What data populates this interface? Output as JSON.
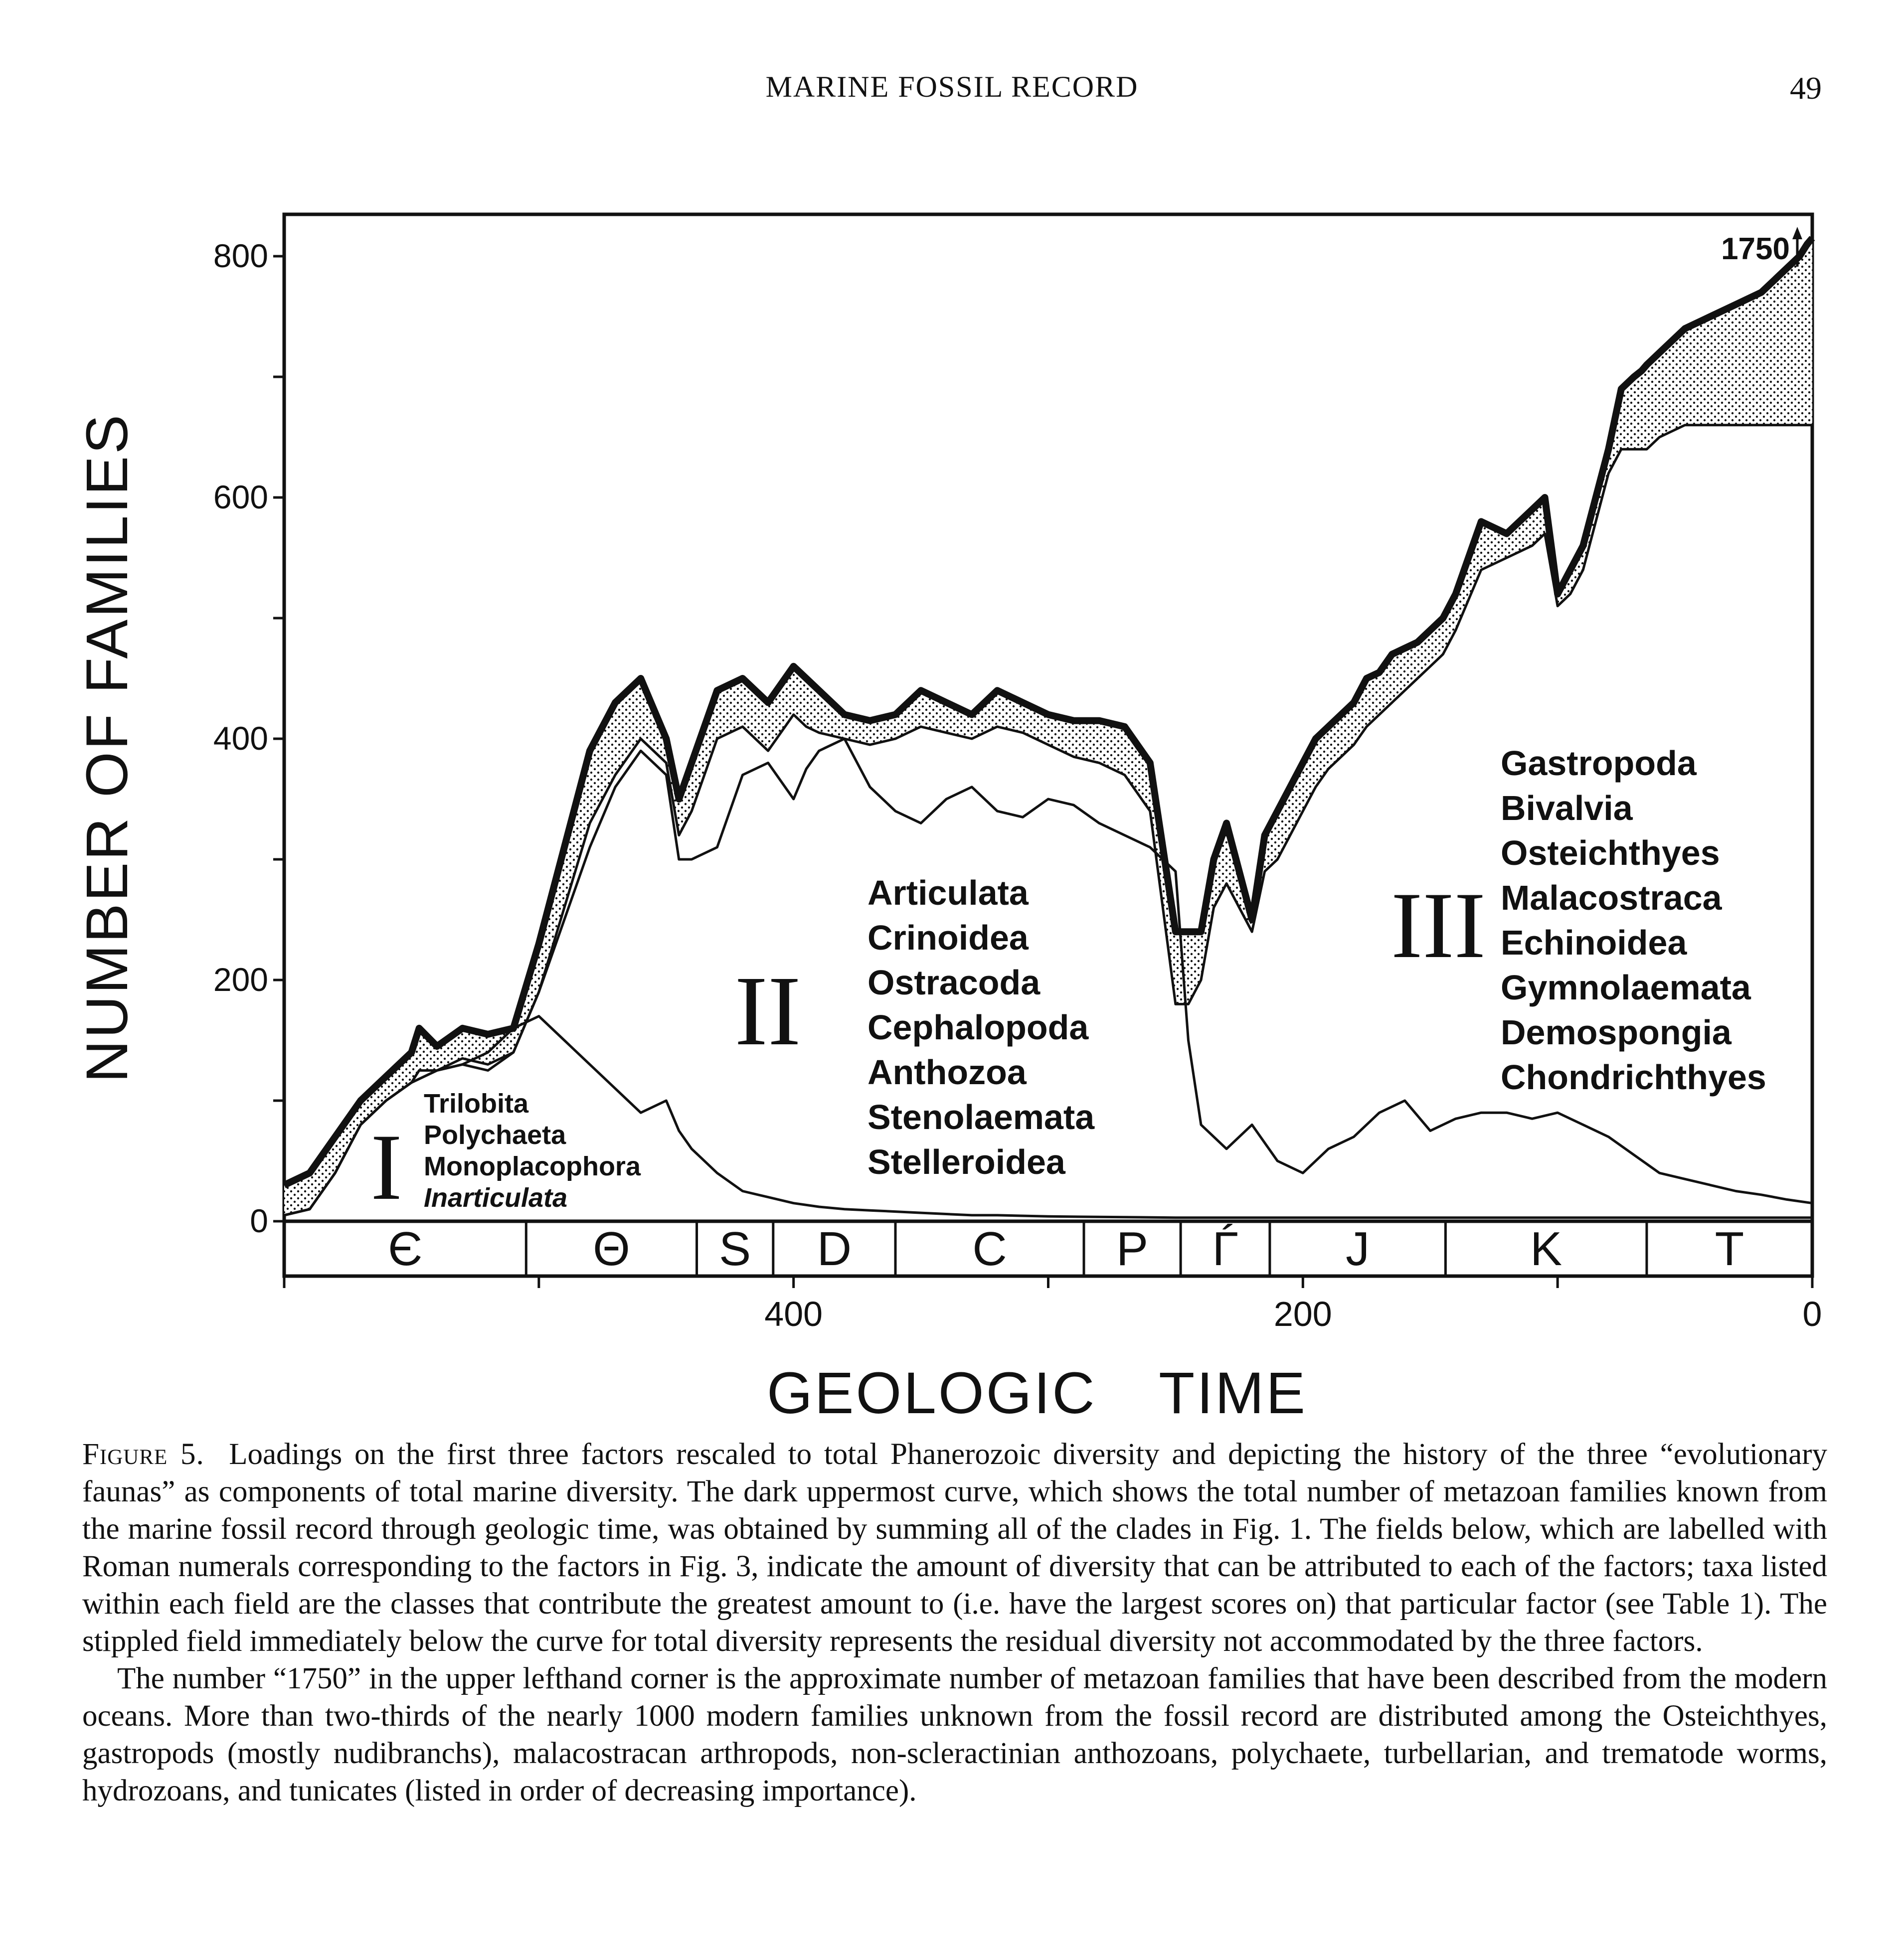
{
  "header": {
    "running_title": "MARINE FOSSIL RECORD",
    "page_number": "49"
  },
  "chart_data": {
    "type": "area",
    "ylabel": "NUMBER OF FAMILIES",
    "xlabel": "GEOLOGIC TIME",
    "x_direction": "decreasing",
    "xlim": [
      600,
      0
    ],
    "ylim": [
      0,
      840
    ],
    "x_ticks": [
      400,
      200,
      0
    ],
    "y_ticks": [
      0,
      200,
      400,
      600,
      800
    ],
    "annotation_top_right": "1750",
    "periods": [
      {
        "label": "Є",
        "start": 600,
        "end": 505
      },
      {
        "label": "Θ",
        "start": 505,
        "end": 438
      },
      {
        "label": "S",
        "start": 438,
        "end": 408
      },
      {
        "label": "D",
        "start": 408,
        "end": 360
      },
      {
        "label": "C",
        "start": 360,
        "end": 286
      },
      {
        "label": "P",
        "start": 286,
        "end": 248
      },
      {
        "label": "Ѓ",
        "start": 248,
        "end": 213
      },
      {
        "label": "J",
        "start": 213,
        "end": 144
      },
      {
        "label": "K",
        "start": 144,
        "end": 65
      },
      {
        "label": "T",
        "start": 65,
        "end": 0
      }
    ],
    "series": [
      {
        "role": "total",
        "x": [
          600,
          590,
          580,
          570,
          560,
          550,
          547,
          540,
          530,
          520,
          510,
          500,
          490,
          480,
          470,
          460,
          450,
          445,
          440,
          430,
          420,
          410,
          400,
          395,
          390,
          380,
          370,
          360,
          350,
          340,
          330,
          320,
          310,
          300,
          290,
          280,
          270,
          260,
          250,
          245,
          240,
          235,
          230,
          220,
          215,
          210,
          205,
          200,
          195,
          190,
          185,
          180,
          175,
          170,
          165,
          160,
          155,
          150,
          145,
          140,
          130,
          120,
          110,
          105,
          100,
          95,
          90,
          85,
          80,
          75,
          70,
          67,
          65,
          60,
          50,
          40,
          30,
          20,
          15,
          10,
          5,
          2,
          0
        ],
        "y": [
          30,
          40,
          70,
          100,
          120,
          140,
          160,
          145,
          160,
          155,
          160,
          230,
          310,
          390,
          430,
          450,
          400,
          350,
          380,
          440,
          450,
          430,
          460,
          450,
          440,
          420,
          415,
          420,
          440,
          430,
          420,
          440,
          430,
          420,
          415,
          415,
          410,
          380,
          240,
          240,
          240,
          300,
          330,
          250,
          320,
          340,
          360,
          380,
          400,
          410,
          420,
          430,
          450,
          455,
          470,
          475,
          480,
          490,
          500,
          520,
          580,
          570,
          590,
          600,
          520,
          540,
          560,
          600,
          640,
          690,
          700,
          705,
          710,
          720,
          740,
          750,
          760,
          770,
          780,
          790,
          800,
          810,
          815
        ]
      },
      {
        "role": "fauna-sum",
        "x": [
          600,
          590,
          580,
          570,
          560,
          550,
          547,
          540,
          530,
          520,
          510,
          500,
          490,
          480,
          470,
          460,
          450,
          445,
          440,
          430,
          420,
          410,
          400,
          395,
          390,
          380,
          370,
          360,
          350,
          340,
          330,
          320,
          310,
          300,
          290,
          280,
          270,
          260,
          250,
          245,
          240,
          235,
          230,
          220,
          215,
          210,
          205,
          200,
          195,
          190,
          185,
          180,
          175,
          170,
          165,
          160,
          155,
          150,
          145,
          140,
          130,
          120,
          110,
          105,
          100,
          95,
          90,
          85,
          80,
          75,
          70,
          67,
          65,
          60,
          50,
          40,
          30,
          20,
          15,
          10,
          5,
          2,
          0
        ],
        "y": [
          5,
          10,
          40,
          80,
          100,
          115,
          125,
          125,
          135,
          130,
          140,
          190,
          260,
          330,
          370,
          400,
          380,
          320,
          340,
          400,
          410,
          390,
          420,
          410,
          405,
          400,
          395,
          400,
          410,
          405,
          400,
          410,
          405,
          395,
          385,
          380,
          370,
          340,
          180,
          180,
          200,
          260,
          280,
          240,
          290,
          300,
          320,
          340,
          360,
          375,
          385,
          395,
          410,
          420,
          430,
          440,
          450,
          460,
          470,
          490,
          540,
          550,
          560,
          570,
          510,
          520,
          540,
          580,
          620,
          640,
          640,
          640,
          640,
          650,
          660,
          660,
          660,
          660,
          660,
          660,
          660,
          660,
          660
        ]
      },
      {
        "role": "faunas-I-II",
        "x": [
          600,
          590,
          580,
          570,
          560,
          550,
          540,
          530,
          520,
          510,
          505,
          500,
          490,
          480,
          470,
          460,
          450,
          445,
          440,
          430,
          420,
          410,
          400,
          395,
          390,
          380,
          370,
          360,
          350,
          340,
          330,
          320,
          310,
          300,
          290,
          280,
          270,
          260,
          250,
          245,
          240,
          230,
          220,
          210,
          200,
          190,
          180,
          170,
          160,
          150,
          140,
          130,
          120,
          110,
          100,
          90,
          80,
          70,
          60,
          50,
          40,
          30,
          20,
          10,
          0
        ],
        "y": [
          5,
          10,
          40,
          80,
          100,
          115,
          125,
          130,
          125,
          140,
          165,
          190,
          250,
          310,
          360,
          390,
          370,
          300,
          300,
          310,
          370,
          380,
          350,
          375,
          390,
          400,
          360,
          340,
          330,
          350,
          360,
          340,
          335,
          350,
          345,
          330,
          320,
          310,
          290,
          150,
          80,
          60,
          80,
          50,
          40,
          60,
          70,
          90,
          100,
          75,
          85,
          90,
          90,
          85,
          90,
          80,
          70,
          55,
          40,
          35,
          30,
          25,
          22,
          18,
          15
        ]
      },
      {
        "role": "fauna-I",
        "x": [
          600,
          590,
          580,
          570,
          560,
          550,
          540,
          530,
          520,
          510,
          500,
          490,
          480,
          470,
          460,
          450,
          445,
          440,
          430,
          420,
          410,
          400,
          390,
          380,
          370,
          360,
          350,
          340,
          330,
          320,
          300,
          250,
          0
        ],
        "y": [
          5,
          10,
          40,
          80,
          100,
          115,
          125,
          130,
          140,
          160,
          170,
          150,
          130,
          110,
          90,
          100,
          75,
          60,
          40,
          25,
          20,
          15,
          12,
          10,
          9,
          8,
          7,
          6,
          5,
          5,
          4,
          3,
          3
        ]
      }
    ],
    "fields": [
      {
        "numeral": "I",
        "taxa": [
          "Trilobita",
          "Polychaeta",
          "Monoplacophora",
          "Inarticulata"
        ]
      },
      {
        "numeral": "II",
        "taxa": [
          "Articulata",
          "Crinoidea",
          "Ostracoda",
          "Cephalopoda",
          "Anthozoa",
          "Stenolaemata",
          "Stelleroidea"
        ]
      },
      {
        "numeral": "III",
        "taxa": [
          "Gastropoda",
          "Bivalvia",
          "Osteichthyes",
          "Malacostraca",
          "Echinoidea",
          "Gymnolaemata",
          "Demospongia",
          "Chondrichthyes"
        ]
      }
    ]
  },
  "caption": {
    "figure_label": "Figure 5.",
    "paragraph1": "Loadings on the first three factors rescaled to total Phanerozoic diversity and depicting the history of the three “evolutionary faunas” as components of total marine diversity. The dark uppermost curve, which shows the total number of metazoan families known from the marine fossil record through geologic time, was obtained by summing all of the clades in Fig. 1. The fields below, which are labelled with Roman numerals corresponding to the factors in Fig. 3, indicate the amount of diversity that can be attributed to each of the factors; taxa listed within each field are the classes that contribute the greatest amount to (i.e. have the largest scores on) that particular factor (see Table 1). The stippled field immediately below the curve for total diversity represents the residual diversity not accommodated by the three factors.",
    "paragraph2": "The number “1750” in the upper lefthand corner is the approximate number of metazoan families that have been described from the modern oceans. More than two-thirds of the nearly 1000 modern families unknown from the fossil record are distributed among the Osteichthyes, gastropods (mostly nudibranchs), malacostracan arthropods, non-scleractinian anthozoans, polychaete, turbellarian, and trematode worms, hydrozoans, and tunicates (listed in order of decreasing importance)."
  }
}
